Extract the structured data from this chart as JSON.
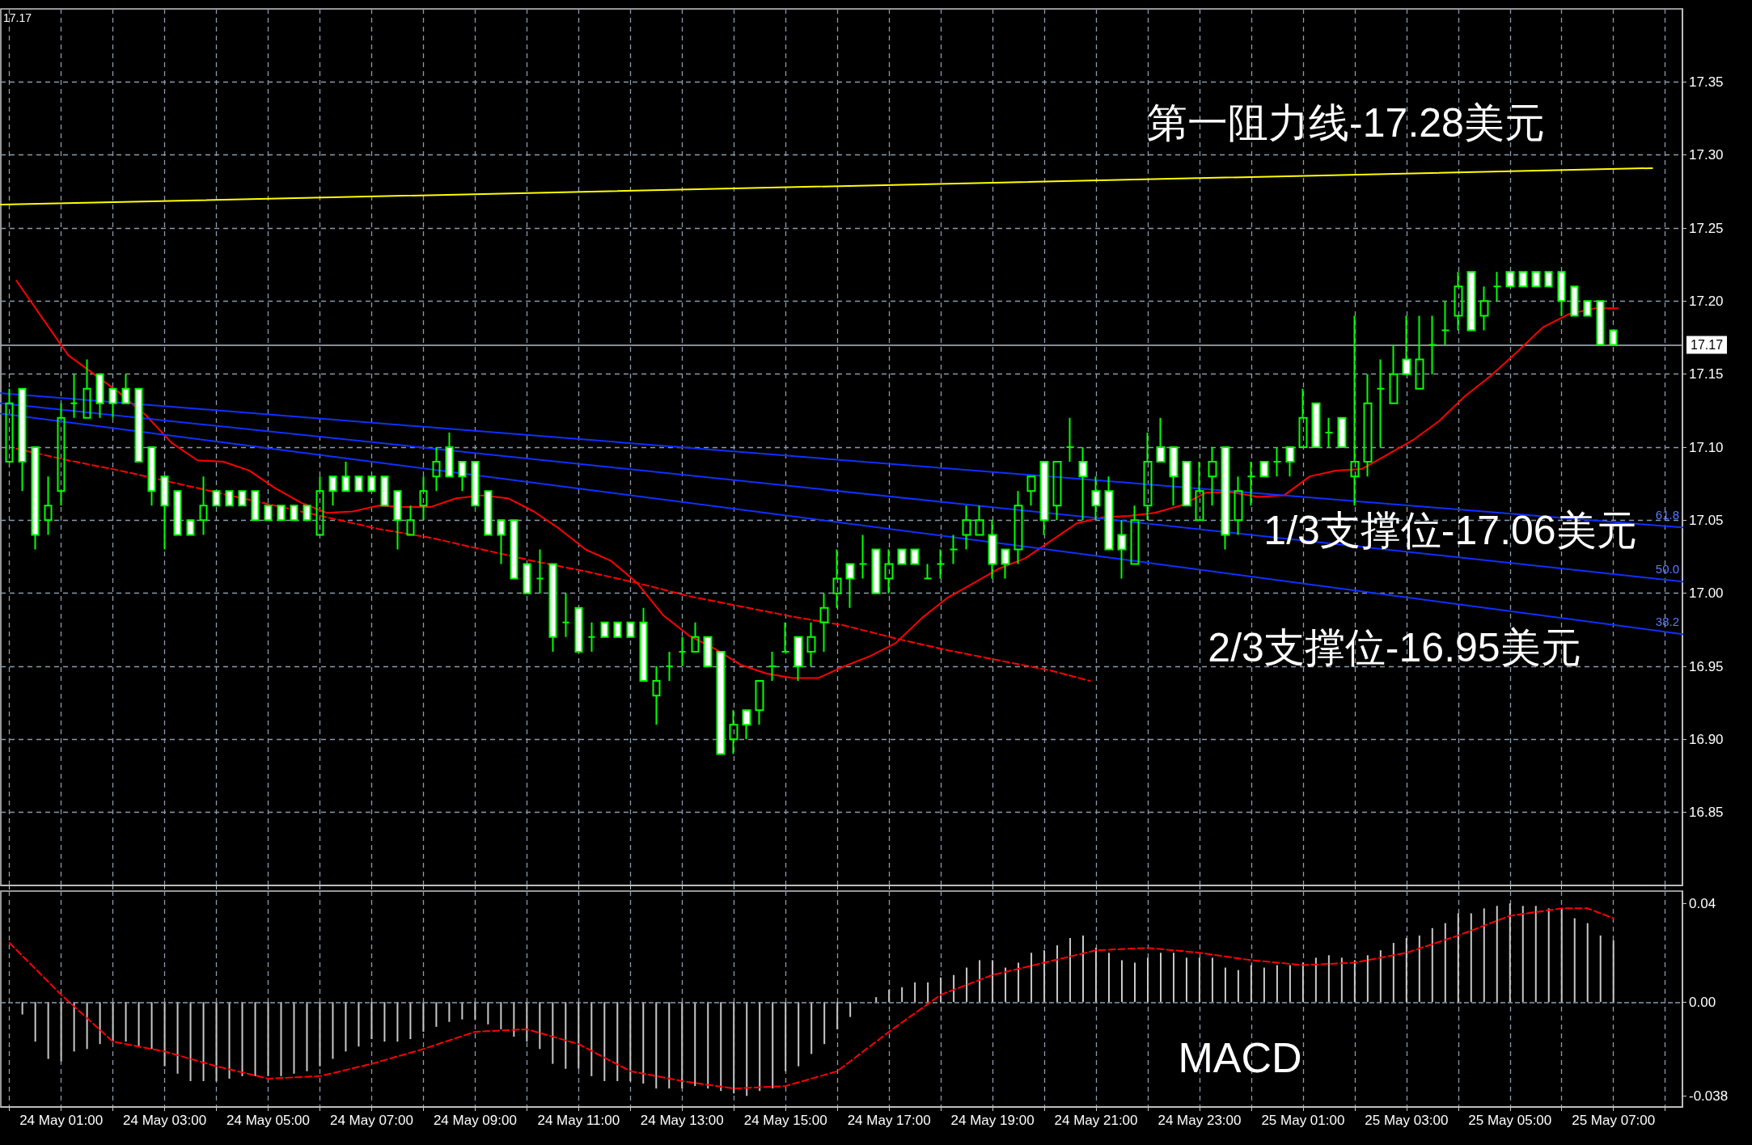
{
  "chart_data": [
    {
      "type": "candlestick",
      "color": "#00ff00",
      "x": [
        "--05-24T00:00",
        "--05-24T00:15",
        "--05-24T00:30",
        "--05-24T00:45",
        "--05-24T01:00",
        "--05-24T01:15",
        "--05-24T01:30",
        "--05-24T01:45",
        "--05-24T02:00",
        "--05-24T02:15",
        "--05-24T02:30",
        "--05-24T02:45",
        "--05-24T03:00",
        "--05-24T03:15",
        "--05-24T03:30",
        "--05-24T03:45",
        "--05-24T04:00",
        "--05-24T04:15",
        "--05-24T04:30",
        "--05-24T04:45",
        "--05-24T05:00",
        "--05-24T05:15",
        "--05-24T05:30",
        "--05-24T05:45",
        "--05-24T06:00",
        "--05-24T06:15",
        "--05-24T06:30",
        "--05-24T06:45",
        "--05-24T07:00",
        "--05-24T07:15",
        "--05-24T07:30",
        "--05-24T07:45",
        "--05-24T08:00",
        "--05-24T08:15",
        "--05-24T08:30",
        "--05-24T08:45",
        "--05-24T09:00",
        "--05-24T09:15",
        "--05-24T09:30",
        "--05-24T09:45",
        "--05-24T10:00",
        "--05-24T10:15",
        "--05-24T10:30",
        "--05-24T10:45",
        "--05-24T11:00",
        "--05-24T11:15",
        "--05-24T11:30",
        "--05-24T11:45",
        "--05-24T12:00",
        "--05-24T12:15",
        "--05-24T12:30",
        "--05-24T12:45",
        "--05-24T13:00",
        "--05-24T13:15",
        "--05-24T13:30",
        "--05-24T13:45",
        "--05-24T14:00",
        "--05-24T14:15",
        "--05-24T14:30",
        "--05-24T14:45",
        "--05-24T15:00",
        "--05-24T15:15",
        "--05-24T15:30",
        "--05-24T15:45",
        "--05-24T16:00",
        "--05-24T16:15",
        "--05-24T16:30",
        "--05-24T16:45",
        "--05-24T17:00",
        "--05-24T17:15",
        "--05-24T17:30",
        "--05-24T17:45",
        "--05-24T18:00",
        "--05-24T18:15",
        "--05-24T18:30",
        "--05-24T18:45",
        "--05-24T19:00",
        "--05-24T19:15",
        "--05-24T19:30",
        "--05-24T19:45",
        "--05-24T20:00",
        "--05-24T20:15",
        "--05-24T20:30",
        "--05-24T20:45",
        "--05-24T21:00",
        "--05-24T21:15",
        "--05-24T21:30",
        "--05-24T21:45",
        "--05-24T22:00",
        "--05-24T22:15",
        "--05-24T22:30",
        "--05-24T22:45",
        "--05-24T23:00",
        "--05-24T23:15",
        "--05-24T23:30",
        "--05-24T23:45",
        "--05-25T00:00",
        "--05-25T00:15",
        "--05-25T00:30",
        "--05-25T00:45",
        "--05-25T01:00",
        "--05-25T01:15",
        "--05-25T01:30",
        "--05-25T01:45",
        "--05-25T02:00",
        "--05-25T02:15",
        "--05-25T02:30",
        "--05-25T02:45",
        "--05-25T03:00",
        "--05-25T03:15",
        "--05-25T03:30",
        "--05-25T03:45",
        "--05-25T04:00",
        "--05-25T04:15",
        "--05-25T04:30",
        "--05-25T04:45",
        "--05-25T05:00",
        "--05-25T05:15",
        "--05-25T05:30",
        "--05-25T05:45",
        "--05-25T06:00",
        "--05-25T06:15",
        "--05-25T06:30",
        "--05-25T06:45",
        "--05-25T07:00"
      ],
      "ohlc": [
        [
          17.09,
          17.14,
          17.09,
          17.13
        ],
        [
          17.14,
          17.14,
          17.07,
          17.09
        ],
        [
          17.1,
          17.1,
          17.03,
          17.04
        ],
        [
          17.05,
          17.08,
          17.04,
          17.06
        ],
        [
          17.07,
          17.13,
          17.06,
          17.12
        ],
        [
          17.13,
          17.15,
          17.12,
          17.13
        ],
        [
          17.12,
          17.16,
          17.12,
          17.14
        ],
        [
          17.15,
          17.15,
          17.12,
          17.13
        ],
        [
          17.14,
          17.14,
          17.12,
          17.13
        ],
        [
          17.14,
          17.15,
          17.13,
          17.13
        ],
        [
          17.14,
          17.14,
          17.09,
          17.09
        ],
        [
          17.1,
          17.1,
          17.06,
          17.07
        ],
        [
          17.08,
          17.08,
          17.03,
          17.06
        ],
        [
          17.07,
          17.07,
          17.04,
          17.04
        ],
        [
          17.05,
          17.05,
          17.04,
          17.04
        ],
        [
          17.05,
          17.08,
          17.04,
          17.06
        ],
        [
          17.07,
          17.07,
          17.06,
          17.06
        ],
        [
          17.07,
          17.07,
          17.06,
          17.06
        ],
        [
          17.07,
          17.07,
          17.06,
          17.06
        ],
        [
          17.07,
          17.07,
          17.05,
          17.05
        ],
        [
          17.06,
          17.06,
          17.05,
          17.05
        ],
        [
          17.06,
          17.06,
          17.05,
          17.05
        ],
        [
          17.06,
          17.06,
          17.05,
          17.05
        ],
        [
          17.06,
          17.06,
          17.05,
          17.05
        ],
        [
          17.04,
          17.08,
          17.04,
          17.07
        ],
        [
          17.08,
          17.08,
          17.06,
          17.07
        ],
        [
          17.08,
          17.09,
          17.07,
          17.07
        ],
        [
          17.08,
          17.08,
          17.07,
          17.07
        ],
        [
          17.08,
          17.08,
          17.07,
          17.07
        ],
        [
          17.08,
          17.08,
          17.06,
          17.06
        ],
        [
          17.07,
          17.07,
          17.03,
          17.05
        ],
        [
          17.04,
          17.06,
          17.04,
          17.05
        ],
        [
          17.06,
          17.08,
          17.05,
          17.07
        ],
        [
          17.08,
          17.1,
          17.07,
          17.09
        ],
        [
          17.1,
          17.11,
          17.08,
          17.08
        ],
        [
          17.09,
          17.09,
          17.07,
          17.08
        ],
        [
          17.09,
          17.09,
          17.06,
          17.06
        ],
        [
          17.07,
          17.07,
          17.04,
          17.04
        ],
        [
          17.05,
          17.05,
          17.02,
          17.04
        ],
        [
          17.05,
          17.05,
          17.01,
          17.01
        ],
        [
          17.02,
          17.02,
          17.0,
          17.0
        ],
        [
          17.01,
          17.03,
          17.0,
          17.01
        ],
        [
          17.02,
          17.02,
          16.96,
          16.97
        ],
        [
          16.98,
          17.0,
          16.97,
          16.98
        ],
        [
          16.99,
          16.99,
          16.96,
          16.96
        ],
        [
          16.97,
          16.98,
          16.96,
          16.97
        ],
        [
          16.98,
          16.98,
          16.97,
          16.97
        ],
        [
          16.98,
          16.98,
          16.97,
          16.97
        ],
        [
          16.98,
          16.98,
          16.97,
          16.97
        ],
        [
          16.98,
          16.99,
          16.94,
          16.94
        ],
        [
          16.93,
          16.95,
          16.91,
          16.94
        ],
        [
          16.95,
          16.96,
          16.94,
          16.95
        ],
        [
          16.96,
          16.97,
          16.95,
          16.96
        ],
        [
          16.96,
          16.98,
          16.96,
          16.97
        ],
        [
          16.97,
          16.97,
          16.95,
          16.95
        ],
        [
          16.96,
          16.96,
          16.89,
          16.89
        ],
        [
          16.9,
          16.92,
          16.89,
          16.91
        ],
        [
          16.92,
          16.92,
          16.9,
          16.91
        ],
        [
          16.92,
          16.94,
          16.91,
          16.94
        ],
        [
          16.95,
          16.96,
          16.94,
          16.95
        ],
        [
          16.96,
          16.98,
          16.96,
          16.96
        ],
        [
          16.97,
          16.97,
          16.94,
          16.95
        ],
        [
          16.96,
          16.98,
          16.95,
          16.97
        ],
        [
          16.98,
          17.0,
          16.96,
          16.99
        ],
        [
          17.0,
          17.03,
          16.99,
          17.01
        ],
        [
          17.02,
          17.02,
          16.99,
          17.01
        ],
        [
          17.02,
          17.04,
          17.01,
          17.02
        ],
        [
          17.03,
          17.03,
          17.0,
          17.0
        ],
        [
          17.01,
          17.03,
          17.0,
          17.02
        ],
        [
          17.03,
          17.03,
          17.02,
          17.02
        ],
        [
          17.03,
          17.03,
          17.02,
          17.02
        ],
        [
          17.01,
          17.02,
          17.01,
          17.01
        ],
        [
          17.02,
          17.03,
          17.01,
          17.02
        ],
        [
          17.03,
          17.04,
          17.02,
          17.03
        ],
        [
          17.04,
          17.06,
          17.03,
          17.05
        ],
        [
          17.04,
          17.06,
          17.04,
          17.05
        ],
        [
          17.04,
          17.05,
          17.01,
          17.02
        ],
        [
          17.03,
          17.03,
          17.01,
          17.02
        ],
        [
          17.03,
          17.07,
          17.02,
          17.06
        ],
        [
          17.07,
          17.08,
          17.06,
          17.08
        ],
        [
          17.09,
          17.09,
          17.04,
          17.05
        ],
        [
          17.06,
          17.09,
          17.05,
          17.09
        ],
        [
          17.1,
          17.12,
          17.09,
          17.1
        ],
        [
          17.09,
          17.1,
          17.05,
          17.08
        ],
        [
          17.07,
          17.08,
          17.05,
          17.06
        ],
        [
          17.07,
          17.08,
          17.03,
          17.03
        ],
        [
          17.04,
          17.05,
          17.01,
          17.03
        ],
        [
          17.02,
          17.06,
          17.02,
          17.05
        ],
        [
          17.06,
          17.11,
          17.05,
          17.09
        ],
        [
          17.1,
          17.12,
          17.09,
          17.09
        ],
        [
          17.1,
          17.1,
          17.06,
          17.08
        ],
        [
          17.09,
          17.09,
          17.06,
          17.06
        ],
        [
          17.05,
          17.09,
          17.05,
          17.07
        ],
        [
          17.08,
          17.1,
          17.06,
          17.09
        ],
        [
          17.1,
          17.1,
          17.03,
          17.04
        ],
        [
          17.05,
          17.08,
          17.04,
          17.07
        ],
        [
          17.08,
          17.09,
          17.06,
          17.08
        ],
        [
          17.09,
          17.09,
          17.08,
          17.08
        ],
        [
          17.09,
          17.1,
          17.08,
          17.09
        ],
        [
          17.1,
          17.1,
          17.08,
          17.09
        ],
        [
          17.1,
          17.14,
          17.1,
          17.12
        ],
        [
          17.13,
          17.13,
          17.1,
          17.1
        ],
        [
          17.11,
          17.12,
          17.1,
          17.11
        ],
        [
          17.12,
          17.12,
          17.1,
          17.1
        ],
        [
          17.08,
          17.19,
          17.06,
          17.09
        ],
        [
          17.09,
          17.15,
          17.08,
          17.13
        ],
        [
          17.14,
          17.16,
          17.1,
          17.14
        ],
        [
          17.13,
          17.17,
          17.13,
          17.15
        ],
        [
          17.16,
          17.19,
          17.15,
          17.15
        ],
        [
          17.14,
          17.19,
          17.14,
          17.16
        ],
        [
          17.17,
          17.19,
          17.15,
          17.17
        ],
        [
          17.18,
          17.2,
          17.17,
          17.18
        ],
        [
          17.19,
          17.22,
          17.18,
          17.21
        ],
        [
          17.22,
          17.22,
          17.18,
          17.18
        ],
        [
          17.19,
          17.21,
          17.18,
          17.2
        ],
        [
          17.21,
          17.22,
          17.2,
          17.21
        ],
        [
          17.22,
          17.22,
          17.21,
          17.21
        ],
        [
          17.22,
          17.22,
          17.21,
          17.21
        ],
        [
          17.22,
          17.22,
          17.21,
          17.21
        ],
        [
          17.22,
          17.22,
          17.21,
          17.21
        ],
        [
          17.22,
          17.22,
          17.19,
          17.2
        ],
        [
          17.21,
          17.21,
          17.19,
          17.19
        ],
        [
          17.2,
          17.2,
          17.19,
          17.19
        ],
        [
          17.2,
          17.2,
          17.17,
          17.17
        ],
        [
          17.18,
          17.18,
          17.17,
          17.17
        ]
      ],
      "series": [
        {
          "type": "line",
          "color": "#ff0000",
          "x": [
            "--05-24T00:08",
            "--05-24T01:08",
            "--05-24T02:08",
            "--05-24T02:38",
            "--05-24T03:08",
            "--05-24T03:38",
            "--05-24T04:08",
            "--05-24T04:38",
            "--05-24T05:08",
            "--05-24T05:38",
            "--05-24T06:08",
            "--05-24T06:38",
            "--05-24T07:08",
            "--05-24T07:38",
            "--05-24T08:08",
            "--05-24T08:38",
            "--05-24T09:08",
            "--05-24T09:38",
            "--05-24T10:08",
            "--05-24T10:38",
            "--05-24T11:08",
            "--05-24T11:38",
            "--05-24T12:08",
            "--05-24T12:38",
            "--05-24T13:08",
            "--05-24T13:38",
            "--05-24T14:08",
            "--05-24T14:38",
            "--05-24T15:08",
            "--05-24T15:38",
            "--05-24T16:08",
            "--05-24T16:38",
            "--05-24T17:08",
            "--05-24T17:38",
            "--05-24T18:08",
            "--05-24T18:38",
            "--05-24T19:08",
            "--05-24T19:38",
            "--05-24T20:08",
            "--05-24T20:38",
            "--05-24T21:08",
            "--05-24T21:38",
            "--05-24T22:08",
            "--05-24T22:38",
            "--05-24T23:08",
            "--05-24T23:38",
            "--05-25T00:08",
            "--05-25T00:38",
            "--05-25T01:08",
            "--05-25T01:38",
            "--05-25T02:08",
            "--05-25T02:38",
            "--05-25T03:08",
            "--05-25T03:38",
            "--05-25T04:08",
            "--05-25T04:38",
            "--05-25T05:08",
            "--05-25T05:38",
            "--05-25T06:08",
            "--05-25T06:38",
            "--05-25T07:05"
          ],
          "values": [
            17.214,
            17.163,
            17.137,
            17.122,
            17.103,
            17.091,
            17.09,
            17.084,
            17.072,
            17.062,
            17.055,
            17.056,
            17.06,
            17.059,
            17.059,
            17.065,
            17.067,
            17.065,
            17.056,
            17.044,
            17.03,
            17.022,
            17.007,
            16.985,
            16.971,
            16.962,
            16.951,
            16.945,
            16.942,
            16.942,
            16.95,
            16.957,
            16.966,
            16.983,
            16.997,
            17.007,
            17.017,
            17.024,
            17.036,
            17.048,
            17.052,
            17.053,
            17.055,
            17.06,
            17.069,
            17.069,
            17.066,
            17.067,
            17.08,
            17.084,
            17.085,
            17.095,
            17.105,
            17.118,
            17.135,
            17.149,
            17.165,
            17.182,
            17.191,
            17.195,
            17.195
          ]
        },
        {
          "type": "line",
          "color": "#ff0000",
          "line_style": "dashed",
          "x": [
            "--05-24T00:08",
            "--05-24T01:08",
            "--05-24T02:08",
            "--05-24T03:08",
            "--05-24T04:08",
            "--05-24T05:08",
            "--05-24T06:08",
            "--05-24T07:08",
            "--05-24T08:08",
            "--05-24T09:08",
            "--05-24T10:08",
            "--05-24T11:08",
            "--05-24T12:08",
            "--05-24T13:08",
            "--05-24T14:08",
            "--05-24T15:08",
            "--05-24T16:08",
            "--05-24T17:08",
            "--05-24T18:08",
            "--05-24T19:08",
            "--05-24T20:08",
            "--05-24T20:53"
          ],
          "values": [
            17.099,
            17.091,
            17.084,
            17.076,
            17.068,
            17.06,
            17.052,
            17.044,
            17.038,
            17.03,
            17.022,
            17.015,
            17.007,
            16.998,
            16.991,
            16.984,
            16.978,
            16.969,
            16.961,
            16.954,
            16.947,
            16.94
          ]
        },
        {
          "type": "line",
          "name": "61.8",
          "color": "#1030ff",
          "x": [
            "--05-23T23:50",
            "--05-24T21:08",
            "--05-25T08:20"
          ],
          "values": [
            17.137,
            17.077,
            17.045
          ]
        },
        {
          "type": "line",
          "name": "50.0",
          "color": "#1030ff",
          "x": [
            "--05-23T23:50",
            "--05-24T21:08",
            "--05-25T08:20"
          ],
          "values": [
            17.13,
            17.051,
            17.008
          ]
        },
        {
          "type": "line",
          "name": "38.2",
          "color": "#1030ff",
          "x": [
            "--05-23T23:50",
            "--05-24T21:08",
            "--05-25T08:20"
          ],
          "values": [
            17.123,
            17.025,
            16.972
          ]
        },
        {
          "type": "line",
          "color": "#ffff00",
          "x": [
            "--05-23T23:50",
            "--05-25T07:45"
          ],
          "values": [
            17.266,
            17.291
          ]
        }
      ],
      "xlim": [
        "--05-23T23:50",
        "--05-25T08:20"
      ],
      "xticks": [
        {
          "value": "--05-24T00:00",
          "label": null
        },
        {
          "value": "--05-24T01:00",
          "label": "24 May 01:00"
        },
        {
          "value": "--05-24T02:00",
          "label": null
        },
        {
          "value": "--05-24T03:00",
          "label": "24 May 03:00"
        },
        {
          "value": "--05-24T04:00",
          "label": null
        },
        {
          "value": "--05-24T05:00",
          "label": "24 May 05:00"
        },
        {
          "value": "--05-24T06:00",
          "label": null
        },
        {
          "value": "--05-24T07:00",
          "label": "24 May 07:00"
        },
        {
          "value": "--05-24T08:00",
          "label": null
        },
        {
          "value": "--05-24T09:00",
          "label": "24 May 09:00"
        },
        {
          "value": "--05-24T10:00",
          "label": null
        },
        {
          "value": "--05-24T11:00",
          "label": "24 May 11:00"
        },
        {
          "value": "--05-24T12:00",
          "label": null
        },
        {
          "value": "--05-24T13:00",
          "label": "24 May 13:00"
        },
        {
          "value": "--05-24T14:00",
          "label": null
        },
        {
          "value": "--05-24T15:00",
          "label": "24 May 15:00"
        },
        {
          "value": "--05-24T16:00",
          "label": null
        },
        {
          "value": "--05-24T17:00",
          "label": "24 May 17:00"
        },
        {
          "value": "--05-24T18:00",
          "label": null
        },
        {
          "value": "--05-24T19:00",
          "label": "24 May 19:00"
        },
        {
          "value": "--05-24T20:00",
          "label": null
        },
        {
          "value": "--05-24T21:00",
          "label": "24 May 21:00"
        },
        {
          "value": "--05-24T22:00",
          "label": null
        },
        {
          "value": "--05-24T23:00",
          "label": "24 May 23:00"
        },
        {
          "value": "--05-25T00:00",
          "label": null
        },
        {
          "value": "--05-25T01:00",
          "label": "25 May 01:00"
        },
        {
          "value": "--05-25T02:00",
          "label": null
        },
        {
          "value": "--05-25T03:00",
          "label": "25 May 03:00"
        },
        {
          "value": "--05-25T04:00",
          "label": null
        },
        {
          "value": "--05-25T05:00",
          "label": "25 May 05:00"
        },
        {
          "value": "--05-25T06:00",
          "label": null
        },
        {
          "value": "--05-25T07:00",
          "label": "25 May 07:00"
        },
        {
          "value": "--05-25T08:00",
          "label": null
        }
      ],
      "ylim": [
        16.8,
        17.4
      ],
      "yticks": [
        {
          "value": 16.85,
          "label": "16.85"
        },
        {
          "value": 16.9,
          "label": "16.90"
        },
        {
          "value": 16.95,
          "label": "16.95"
        },
        {
          "value": 17.0,
          "label": "17.00"
        },
        {
          "value": 17.05,
          "label": "17.05"
        },
        {
          "value": 17.1,
          "label": "17.10"
        },
        {
          "value": 17.15,
          "label": "17.15"
        },
        {
          "value": 17.2,
          "label": "17.20"
        },
        {
          "value": 17.25,
          "label": "17.25"
        },
        {
          "value": 17.3,
          "label": "17.30"
        },
        {
          "value": 17.35,
          "label": "17.35"
        }
      ],
      "grid": true,
      "tick_labels": "y",
      "ref_lines": [
        {
          "axis": "y",
          "value": 17.17,
          "label": "17.17",
          "color": "#b4bcc4"
        }
      ],
      "annotations": [
        "17.17",
        "第一阻力线-17.28美元",
        "1/3支撑位-17.06美元",
        "2/3支撑位-16.95美元"
      ]
    },
    {
      "type": "bar",
      "color": "#c8c8c8",
      "x": [
        "--05-24T00:15",
        "--05-24T00:30",
        "--05-24T00:45",
        "--05-24T01:00",
        "--05-24T01:15",
        "--05-24T01:30",
        "--05-24T01:45",
        "--05-24T02:00",
        "--05-24T02:15",
        "--05-24T02:30",
        "--05-24T02:45",
        "--05-24T03:00",
        "--05-24T03:15",
        "--05-24T03:30",
        "--05-24T03:45",
        "--05-24T04:00",
        "--05-24T04:15",
        "--05-24T04:30",
        "--05-24T04:45",
        "--05-24T05:00",
        "--05-24T05:15",
        "--05-24T05:30",
        "--05-24T05:45",
        "--05-24T06:00",
        "--05-24T06:15",
        "--05-24T06:30",
        "--05-24T06:45",
        "--05-24T07:00",
        "--05-24T07:15",
        "--05-24T07:30",
        "--05-24T07:45",
        "--05-24T08:00",
        "--05-24T08:15",
        "--05-24T08:30",
        "--05-24T08:45",
        "--05-24T09:00",
        "--05-24T09:15",
        "--05-24T09:30",
        "--05-24T09:45",
        "--05-24T10:00",
        "--05-24T10:15",
        "--05-24T10:30",
        "--05-24T10:45",
        "--05-24T11:00",
        "--05-24T11:15",
        "--05-24T11:30",
        "--05-24T11:45",
        "--05-24T12:00",
        "--05-24T12:15",
        "--05-24T12:30",
        "--05-24T12:45",
        "--05-24T13:00",
        "--05-24T13:15",
        "--05-24T13:30",
        "--05-24T13:45",
        "--05-24T14:00",
        "--05-24T14:15",
        "--05-24T14:30",
        "--05-24T14:45",
        "--05-24T15:00",
        "--05-24T15:15",
        "--05-24T15:30",
        "--05-24T15:45",
        "--05-24T16:00",
        "--05-24T16:15",
        "--05-24T16:30",
        "--05-24T16:45",
        "--05-24T17:00",
        "--05-24T17:15",
        "--05-24T17:30",
        "--05-24T17:45",
        "--05-24T18:00",
        "--05-24T18:15",
        "--05-24T18:30",
        "--05-24T18:45",
        "--05-24T19:00",
        "--05-24T19:15",
        "--05-24T19:30",
        "--05-24T19:45",
        "--05-24T20:00",
        "--05-24T20:15",
        "--05-24T20:30",
        "--05-24T20:45",
        "--05-24T21:00",
        "--05-24T21:15",
        "--05-24T21:30",
        "--05-24T21:45",
        "--05-24T22:00",
        "--05-24T22:15",
        "--05-24T22:30",
        "--05-24T22:45",
        "--05-24T23:00",
        "--05-24T23:15",
        "--05-24T23:30",
        "--05-24T23:45",
        "--05-25T00:00",
        "--05-25T00:15",
        "--05-25T00:30",
        "--05-25T00:45",
        "--05-25T01:00",
        "--05-25T01:15",
        "--05-25T01:30",
        "--05-25T01:45",
        "--05-25T02:00",
        "--05-25T02:15",
        "--05-25T02:30",
        "--05-25T02:45",
        "--05-25T03:00",
        "--05-25T03:15",
        "--05-25T03:30",
        "--05-25T03:45",
        "--05-25T04:00",
        "--05-25T04:15",
        "--05-25T04:30",
        "--05-25T04:45",
        "--05-25T05:00",
        "--05-25T05:15",
        "--05-25T05:30",
        "--05-25T05:45",
        "--05-25T06:00",
        "--05-25T06:15",
        "--05-25T06:30",
        "--05-25T06:45",
        "--05-25T07:00"
      ],
      "values": [
        -0.005,
        -0.016,
        -0.023,
        -0.024,
        -0.02,
        -0.019,
        -0.017,
        -0.016,
        -0.016,
        -0.018,
        -0.019,
        -0.026,
        -0.029,
        -0.032,
        -0.032,
        -0.032,
        -0.031,
        -0.03,
        -0.03,
        -0.03,
        -0.03,
        -0.029,
        -0.028,
        -0.026,
        -0.023,
        -0.02,
        -0.018,
        -0.015,
        -0.016,
        -0.016,
        -0.015,
        -0.012,
        -0.01,
        -0.008,
        -0.007,
        -0.007,
        -0.009,
        -0.011,
        -0.014,
        -0.016,
        -0.019,
        -0.025,
        -0.027,
        -0.027,
        -0.03,
        -0.032,
        -0.032,
        -0.032,
        -0.033,
        -0.035,
        -0.035,
        -0.035,
        -0.034,
        -0.035,
        -0.036,
        -0.037,
        -0.038,
        -0.036,
        -0.035,
        -0.028,
        -0.026,
        -0.021,
        -0.017,
        -0.011,
        -0.006,
        null,
        0.002,
        0.005,
        0.006,
        0.008,
        0.008,
        0.01,
        0.011,
        0.014,
        0.017,
        0.017,
        0.014,
        0.016,
        0.02,
        0.021,
        0.023,
        0.026,
        0.027,
        0.022,
        0.02,
        0.017,
        0.016,
        0.018,
        0.02,
        0.02,
        0.018,
        0.018,
        0.018,
        0.014,
        0.013,
        0.015,
        0.014,
        0.015,
        0.015,
        0.016,
        0.018,
        0.019,
        0.018,
        0.017,
        0.019,
        0.021,
        0.024,
        0.026,
        0.027,
        0.03,
        0.032,
        0.036,
        0.036,
        0.038,
        0.039,
        0.04,
        0.039,
        0.039,
        0.038,
        0.038,
        0.034,
        0.032,
        0.027,
        0.025
      ],
      "series": [
        {
          "type": "line",
          "color": "#ff0000",
          "line_style": "dashed",
          "x": [
            "--05-24T00:00",
            "--05-24T01:00",
            "--05-24T02:00",
            "--05-24T03:00",
            "--05-24T04:00",
            "--05-24T05:00",
            "--05-24T06:00",
            "--05-24T07:00",
            "--05-24T08:00",
            "--05-24T09:00",
            "--05-24T10:00",
            "--05-24T11:00",
            "--05-24T12:00",
            "--05-24T13:00",
            "--05-24T14:00",
            "--05-24T15:00",
            "--05-24T16:00",
            "--05-24T17:00",
            "--05-24T18:00",
            "--05-24T19:00",
            "--05-24T20:00",
            "--05-24T21:00",
            "--05-24T22:00",
            "--05-24T23:00",
            "--05-25T00:00",
            "--05-25T01:00",
            "--05-25T02:00",
            "--05-25T03:00",
            "--05-25T04:00",
            "--05-25T05:00",
            "--05-25T06:00",
            "--05-25T06:30",
            "--05-25T07:00"
          ],
          "values": [
            0.024,
            0.003,
            -0.016,
            -0.02,
            -0.026,
            -0.031,
            -0.03,
            -0.025,
            -0.019,
            -0.012,
            -0.011,
            -0.017,
            -0.028,
            -0.032,
            -0.035,
            -0.034,
            -0.028,
            -0.012,
            0.003,
            0.011,
            0.016,
            0.021,
            0.022,
            0.02,
            0.017,
            0.015,
            0.016,
            0.02,
            0.027,
            0.035,
            0.038,
            0.038,
            0.034
          ]
        }
      ],
      "xlim": [
        "--05-23T23:50",
        "--05-25T08:20"
      ],
      "xticks": [
        {
          "value": "--05-24T00:00",
          "label": null
        },
        {
          "value": "--05-24T01:00",
          "label": "24 May 01:00"
        },
        {
          "value": "--05-24T02:00",
          "label": null
        },
        {
          "value": "--05-24T03:00",
          "label": "24 May 03:00"
        },
        {
          "value": "--05-24T04:00",
          "label": null
        },
        {
          "value": "--05-24T05:00",
          "label": "24 May 05:00"
        },
        {
          "value": "--05-24T06:00",
          "label": null
        },
        {
          "value": "--05-24T07:00",
          "label": "24 May 07:00"
        },
        {
          "value": "--05-24T08:00",
          "label": null
        },
        {
          "value": "--05-24T09:00",
          "label": "24 May 09:00"
        },
        {
          "value": "--05-24T10:00",
          "label": null
        },
        {
          "value": "--05-24T11:00",
          "label": "24 May 11:00"
        },
        {
          "value": "--05-24T12:00",
          "label": null
        },
        {
          "value": "--05-24T13:00",
          "label": "24 May 13:00"
        },
        {
          "value": "--05-24T14:00",
          "label": null
        },
        {
          "value": "--05-24T15:00",
          "label": "24 May 15:00"
        },
        {
          "value": "--05-24T16:00",
          "label": null
        },
        {
          "value": "--05-24T17:00",
          "label": "24 May 17:00"
        },
        {
          "value": "--05-24T18:00",
          "label": null
        },
        {
          "value": "--05-24T19:00",
          "label": "24 May 19:00"
        },
        {
          "value": "--05-24T20:00",
          "label": null
        },
        {
          "value": "--05-24T21:00",
          "label": "24 May 21:00"
        },
        {
          "value": "--05-24T22:00",
          "label": null
        },
        {
          "value": "--05-24T23:00",
          "label": "24 May 23:00"
        },
        {
          "value": "--05-25T00:00",
          "label": null
        },
        {
          "value": "--05-25T01:00",
          "label": "25 May 01:00"
        },
        {
          "value": "--05-25T02:00",
          "label": null
        },
        {
          "value": "--05-25T03:00",
          "label": "25 May 03:00"
        },
        {
          "value": "--05-25T04:00",
          "label": null
        },
        {
          "value": "--05-25T05:00",
          "label": "25 May 05:00"
        },
        {
          "value": "--05-25T06:00",
          "label": null
        },
        {
          "value": "--05-25T07:00",
          "label": "25 May 07:00"
        },
        {
          "value": "--05-25T08:00",
          "label": null
        }
      ],
      "ylim": [
        -0.0425,
        0.045
      ],
      "yticks": [
        {
          "value": -0.038,
          "label": "-0.038"
        },
        {
          "value": 0,
          "label": "0.00"
        },
        {
          "value": 0.04,
          "label": "0.04"
        }
      ],
      "grid": "x",
      "ref_lines": [
        {
          "axis": "y",
          "value": 0,
          "color": "#8a9bad",
          "line_style": "dashed"
        }
      ],
      "annotations": [
        "MACD"
      ]
    }
  ]
}
